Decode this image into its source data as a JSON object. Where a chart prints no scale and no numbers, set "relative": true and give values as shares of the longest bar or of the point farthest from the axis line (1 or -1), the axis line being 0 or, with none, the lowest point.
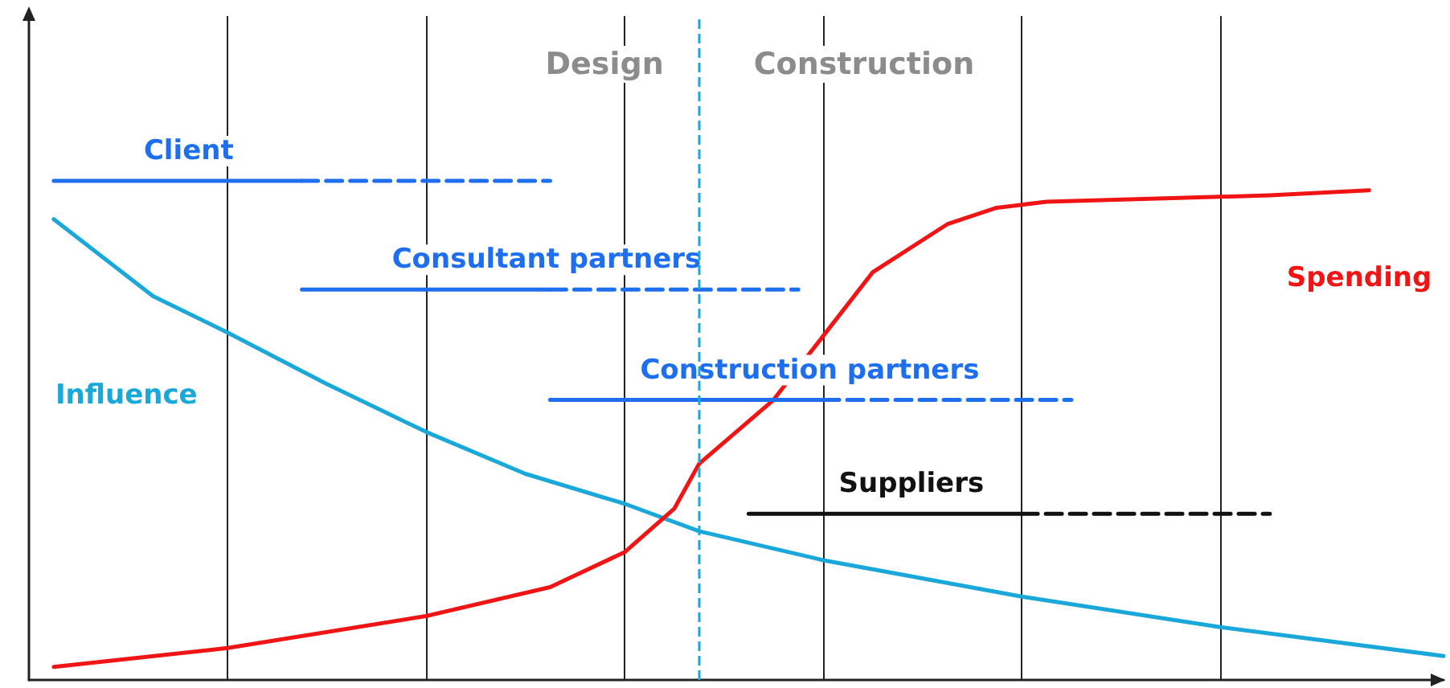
{
  "chart_data": {
    "type": "line",
    "relative": true,
    "marker": "none",
    "grid": "x",
    "legend": false,
    "tick_labels": false,
    "categories": [
      null,
      null,
      null,
      null,
      null,
      null,
      null,
      null,
      null,
      null,
      null,
      null,
      null,
      null,
      null,
      null,
      null,
      null,
      null,
      null,
      null,
      null,
      null,
      null,
      null,
      null,
      null,
      null,
      null,
      null,
      null,
      null,
      null,
      null,
      null,
      null,
      null,
      null,
      null,
      null,
      null,
      null,
      null,
      null,
      null,
      null,
      null,
      null,
      null,
      null,
      null,
      null,
      null,
      null,
      null,
      null,
      null,
      null
    ],
    "annotations": [
      "Design",
      "Construction"
    ],
    "series": [
      {
        "name": "Influence",
        "color": "#1aa7d9",
        "line_style": "solid",
        "values": [
          null,
          0.923,
          null,
          null,
          null,
          0.769,
          null,
          null,
          0.696,
          null,
          null,
          null,
          0.593,
          null,
          null,
          null,
          0.497,
          null,
          null,
          null,
          0.413,
          null,
          null,
          null,
          0.353,
          null,
          null,
          0.298,
          null,
          null,
          null,
          null,
          0.24,
          null,
          null,
          null,
          null,
          null,
          null,
          null,
          0.167,
          null,
          null,
          null,
          null,
          null,
          null,
          null,
          0.106,
          null,
          null,
          null,
          null,
          null,
          null,
          null,
          null,
          0.048
        ]
      },
      {
        "name": "Spending",
        "color": "#f01414",
        "line_style": "solid",
        "values": [
          null,
          0.026,
          null,
          null,
          null,
          null,
          null,
          null,
          0.064,
          null,
          null,
          null,
          null,
          null,
          null,
          null,
          0.128,
          null,
          null,
          null,
          null,
          0.186,
          null,
          null,
          0.256,
          null,
          0.343,
          0.433,
          null,
          null,
          0.561,
          null,
          0.689,
          null,
          0.817,
          null,
          null,
          0.913,
          null,
          0.946,
          null,
          0.958,
          null,
          null,
          null,
          null,
          null,
          null,
          0.968,
          null,
          0.971,
          null,
          null,
          null,
          0.981,
          null,
          null,
          null
        ]
      },
      {
        "name": "Client",
        "color": "#1e6ff0",
        "line_style": "solid",
        "values": [
          null,
          1.0,
          null,
          null,
          null,
          null,
          null,
          null,
          null,
          null,
          null,
          1.0,
          null,
          null,
          null,
          null,
          null,
          null,
          null,
          null,
          null,
          null,
          null,
          null,
          null,
          null,
          null,
          null,
          null,
          null,
          null,
          null,
          null,
          null,
          null,
          null,
          null,
          null,
          null,
          null,
          null,
          null,
          null,
          null,
          null,
          null,
          null,
          null,
          null,
          null,
          null,
          null,
          null,
          null,
          null,
          null,
          null,
          null
        ]
      },
      {
        "color": "#1e6ff0",
        "line_style": "dashed",
        "values": [
          null,
          null,
          null,
          null,
          null,
          null,
          null,
          null,
          null,
          null,
          null,
          1.0,
          null,
          null,
          null,
          null,
          null,
          null,
          null,
          null,
          null,
          1.0,
          null,
          null,
          null,
          null,
          null,
          null,
          null,
          null,
          null,
          null,
          null,
          null,
          null,
          null,
          null,
          null,
          null,
          null,
          null,
          null,
          null,
          null,
          null,
          null,
          null,
          null,
          null,
          null,
          null,
          null,
          null,
          null,
          null,
          null,
          null,
          null
        ]
      },
      {
        "name": "Consultant partners",
        "color": "#1e6ff0",
        "line_style": "solid",
        "values": [
          null,
          null,
          null,
          null,
          null,
          null,
          null,
          null,
          null,
          null,
          null,
          0.782,
          null,
          null,
          null,
          null,
          null,
          null,
          null,
          null,
          null,
          0.782,
          null,
          null,
          null,
          null,
          null,
          null,
          null,
          null,
          null,
          null,
          null,
          null,
          null,
          null,
          null,
          null,
          null,
          null,
          null,
          null,
          null,
          null,
          null,
          null,
          null,
          null,
          null,
          null,
          null,
          null,
          null,
          null,
          null,
          null,
          null,
          null
        ]
      },
      {
        "color": "#1e6ff0",
        "line_style": "dashed",
        "values": [
          null,
          null,
          null,
          null,
          null,
          null,
          null,
          null,
          null,
          null,
          null,
          null,
          null,
          null,
          null,
          null,
          null,
          null,
          null,
          null,
          null,
          0.782,
          null,
          null,
          null,
          null,
          null,
          null,
          null,
          null,
          null,
          0.782,
          null,
          null,
          null,
          null,
          null,
          null,
          null,
          null,
          null,
          null,
          null,
          null,
          null,
          null,
          null,
          null,
          null,
          null,
          null,
          null,
          null,
          null,
          null,
          null,
          null,
          null
        ]
      },
      {
        "name": "Construction partners",
        "color": "#1e6ff0",
        "line_style": "solid",
        "values": [
          null,
          null,
          null,
          null,
          null,
          null,
          null,
          null,
          null,
          null,
          null,
          null,
          null,
          null,
          null,
          null,
          null,
          null,
          null,
          null,
          null,
          0.561,
          null,
          null,
          null,
          null,
          null,
          null,
          null,
          null,
          null,
          null,
          0.561,
          null,
          null,
          null,
          null,
          null,
          null,
          null,
          null,
          null,
          null,
          null,
          null,
          null,
          null,
          null,
          null,
          null,
          null,
          null,
          null,
          null,
          null,
          null,
          null,
          null
        ]
      },
      {
        "color": "#1e6ff0",
        "line_style": "dashed",
        "values": [
          null,
          null,
          null,
          null,
          null,
          null,
          null,
          null,
          null,
          null,
          null,
          null,
          null,
          null,
          null,
          null,
          null,
          null,
          null,
          null,
          null,
          null,
          null,
          null,
          null,
          null,
          null,
          null,
          null,
          null,
          null,
          null,
          0.561,
          null,
          null,
          null,
          null,
          null,
          null,
          null,
          null,
          null,
          0.561,
          null,
          null,
          null,
          null,
          null,
          null,
          null,
          null,
          null,
          null,
          null,
          null,
          null,
          null,
          null
        ]
      },
      {
        "name": "Suppliers",
        "color": "#111111",
        "line_style": "solid",
        "values": [
          null,
          null,
          null,
          null,
          null,
          null,
          null,
          null,
          null,
          null,
          null,
          null,
          null,
          null,
          null,
          null,
          null,
          null,
          null,
          null,
          null,
          null,
          null,
          null,
          null,
          null,
          null,
          null,
          null,
          0.333,
          null,
          null,
          null,
          null,
          null,
          null,
          null,
          null,
          null,
          null,
          0.333,
          null,
          null,
          null,
          null,
          null,
          null,
          null,
          null,
          null,
          null,
          null,
          null,
          null,
          null,
          null,
          null,
          null
        ]
      },
      {
        "color": "#111111",
        "line_style": "dashed",
        "values": [
          null,
          null,
          null,
          null,
          null,
          null,
          null,
          null,
          null,
          null,
          null,
          null,
          null,
          null,
          null,
          null,
          null,
          null,
          null,
          null,
          null,
          null,
          null,
          null,
          null,
          null,
          null,
          null,
          null,
          null,
          null,
          null,
          null,
          null,
          null,
          null,
          null,
          null,
          null,
          null,
          0.333,
          null,
          null,
          null,
          null,
          null,
          null,
          null,
          null,
          null,
          0.333,
          null,
          null,
          null,
          null,
          null,
          null,
          null
        ]
      }
    ]
  }
}
